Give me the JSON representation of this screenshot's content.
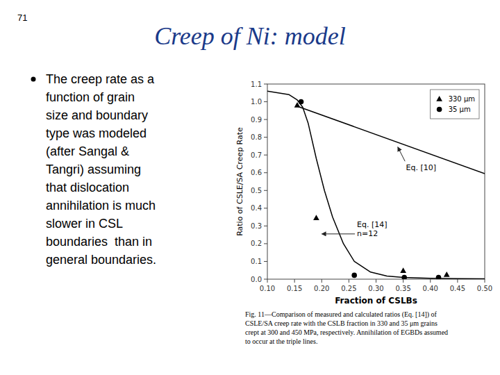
{
  "slide_number": "71",
  "title": "Creep of Ni: model",
  "title_color": "#1a3a8a",
  "bullet_lines": [
    "The creep rate as a",
    "function of grain",
    "size and boundary",
    "type was modeled",
    "(after Sangal &",
    "Tangri) assuming",
    "that dislocation",
    "annihilation is much",
    "slower in CSL",
    "boundaries  than in",
    "general boundaries."
  ],
  "caption_lines": [
    "Fig. 11—Comparison of measured and calculated ratios (Eq. [14]) of",
    "CSLE/SA creep rate with the CSLB fraction in 330 and 35 μm grains",
    "crept at 300 and 450 MPa, respectively. Annihilation of EGBDs assumed",
    "to occur at the triple lines."
  ],
  "chart_data": {
    "type": "scatter",
    "xlabel": "Fraction of CSLBs",
    "ylabel": "Ratio of CSLE/SA Creep Rate",
    "xlim": [
      0.1,
      0.5
    ],
    "ylim": [
      0.0,
      1.1
    ],
    "xticks": [
      {
        "value": 0.1,
        "label": "0.10"
      },
      0.15,
      {
        "value": 0.2,
        "label": "0.20"
      },
      0.25,
      {
        "value": 0.3,
        "label": "0.30"
      },
      0.35,
      {
        "value": 0.4,
        "label": "0.40"
      },
      0.45,
      {
        "value": 0.5,
        "label": "0.50"
      }
    ],
    "yticks": [
      {
        "value": 0.0,
        "label": "0.0"
      },
      0.1,
      0.2,
      0.3,
      0.4,
      0.5,
      0.6,
      0.7,
      0.8,
      0.9,
      {
        "value": 1.0,
        "label": "1.0"
      },
      1.1
    ],
    "grid": false,
    "legend": "upper right",
    "series": [
      {
        "type": "line",
        "line_style": "solid",
        "color": "black",
        "x": [
          0.1,
          0.14,
          0.155,
          0.165,
          0.175,
          0.19,
          0.205,
          0.22,
          0.24,
          0.26,
          0.29,
          0.32,
          0.35,
          0.4,
          0.45,
          0.5
        ],
        "values": [
          1.06,
          1.04,
          1.01,
          0.97,
          0.88,
          0.68,
          0.5,
          0.35,
          0.2,
          0.1,
          0.04,
          0.018,
          0.01,
          0.005,
          0.003,
          0.002
        ]
      },
      {
        "type": "line",
        "line_style": "solid",
        "color": "black",
        "x": [
          0.155,
          0.5
        ],
        "values": [
          0.975,
          0.595
        ]
      },
      {
        "name": "330 μm",
        "type": "scatter",
        "marker": "triangle",
        "color": "black",
        "x": [
          0.155,
          0.19,
          0.35,
          0.43
        ],
        "values": [
          0.98,
          0.345,
          0.048,
          0.025
        ]
      },
      {
        "name": "35 μm",
        "type": "scatter",
        "marker": "circle",
        "color": "black",
        "x": [
          0.162,
          0.26,
          0.352,
          0.415
        ],
        "values": [
          1.0,
          0.022,
          0.01,
          0.01
        ]
      }
    ],
    "annotations": [
      {
        "text": "Eq. [10]",
        "x": 0.34,
        "y": 0.745,
        "text_x": 0.355,
        "text_y": 0.615
      },
      {
        "text": "Eq. [14]\nn=12",
        "x": 0.2,
        "y": 0.255,
        "text_x": 0.265,
        "text_y": 0.295
      }
    ]
  }
}
